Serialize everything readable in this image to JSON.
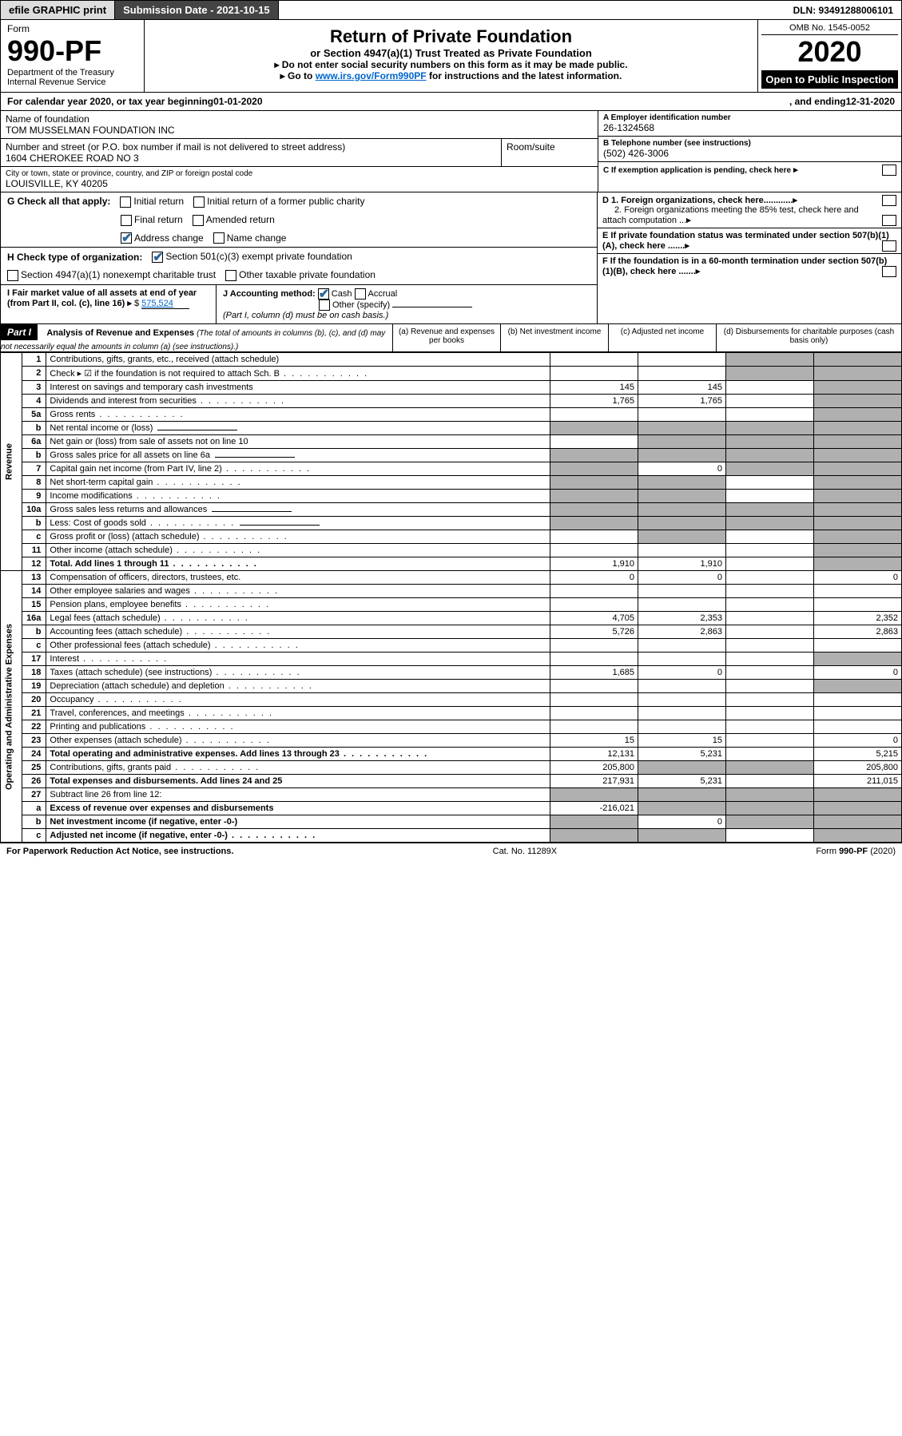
{
  "topbar": {
    "efile": "efile GRAPHIC print",
    "submission": "Submission Date - 2021-10-15",
    "dln": "DLN: 93491288006101"
  },
  "header": {
    "form_label": "Form",
    "form_number": "990-PF",
    "dept": "Department of the Treasury",
    "irs": "Internal Revenue Service",
    "title": "Return of Private Foundation",
    "subtitle": "or Section 4947(a)(1) Trust Treated as Private Foundation",
    "instr1": "▸ Do not enter social security numbers on this form as it may be made public.",
    "instr2_pre": "▸ Go to ",
    "instr2_link": "www.irs.gov/Form990PF",
    "instr2_post": " for instructions and the latest information.",
    "omb": "OMB No. 1545-0052",
    "year": "2020",
    "open": "Open to Public Inspection"
  },
  "calendar": {
    "text_pre": "For calendar year 2020, or tax year beginning ",
    "begin": "01-01-2020",
    "text_mid": " , and ending ",
    "end": "12-31-2020"
  },
  "entity": {
    "name_label": "Name of foundation",
    "name": "TOM MUSSELMAN FOUNDATION INC",
    "addr_label": "Number and street (or P.O. box number if mail is not delivered to street address)",
    "addr": "1604 CHEROKEE ROAD NO 3",
    "room_label": "Room/suite",
    "city_label": "City or town, state or province, country, and ZIP or foreign postal code",
    "city": "LOUISVILLE, KY  40205",
    "ein_label": "A Employer identification number",
    "ein": "26-1324568",
    "phone_label": "B Telephone number (see instructions)",
    "phone": "(502) 426-3006",
    "c_label": "C If exemption application is pending, check here",
    "d1": "D 1. Foreign organizations, check here............",
    "d2": "2. Foreign organizations meeting the 85% test, check here and attach computation ...",
    "e_label": "E If private foundation status was terminated under section 507(b)(1)(A), check here .......",
    "f_label": "F If the foundation is in a 60-month termination under section 507(b)(1)(B), check here .......",
    "g_label": "G Check all that apply:",
    "g_opts": [
      "Initial return",
      "Initial return of a former public charity",
      "Final return",
      "Amended return",
      "Address change",
      "Name change"
    ],
    "h_label": "H Check type of organization:",
    "h_opts": [
      "Section 501(c)(3) exempt private foundation",
      "Section 4947(a)(1) nonexempt charitable trust",
      "Other taxable private foundation"
    ],
    "i_label": "I Fair market value of all assets at end of year (from Part II, col. (c), line 16)",
    "i_val": "575,524",
    "j_label": "J Accounting method:",
    "j_opts": [
      "Cash",
      "Accrual",
      "Other (specify)"
    ],
    "j_note": "(Part I, column (d) must be on cash basis.)"
  },
  "part1": {
    "label": "Part I",
    "title": "Analysis of Revenue and Expenses",
    "title_note": "(The total of amounts in columns (b), (c), and (d) may not necessarily equal the amounts in column (a) (see instructions).)",
    "cols": {
      "a": "(a) Revenue and expenses per books",
      "b": "(b) Net investment income",
      "c": "(c) Adjusted net income",
      "d": "(d) Disbursements for charitable purposes (cash basis only)"
    },
    "sections": {
      "rev": "Revenue",
      "exp": "Operating and Administrative Expenses"
    },
    "rows": [
      {
        "n": "1",
        "d": "Contributions, gifts, grants, etc., received (attach schedule)",
        "a": "",
        "b": "",
        "c": "",
        "dd": "",
        "grey_c": true,
        "grey_d": true
      },
      {
        "n": "2",
        "d": "Check ▸ ☑ if the foundation is not required to attach Sch. B",
        "a": "",
        "b": "",
        "c": "",
        "dd": "",
        "dots": true,
        "grey_c": true,
        "grey_d": true
      },
      {
        "n": "3",
        "d": "Interest on savings and temporary cash investments",
        "a": "145",
        "b": "145",
        "c": "",
        "dd": "",
        "grey_d": true
      },
      {
        "n": "4",
        "d": "Dividends and interest from securities",
        "a": "1,765",
        "b": "1,765",
        "c": "",
        "dd": "",
        "dots": true,
        "grey_d": true
      },
      {
        "n": "5a",
        "d": "Gross rents",
        "a": "",
        "b": "",
        "c": "",
        "dd": "",
        "dots": true,
        "grey_d": true
      },
      {
        "n": "b",
        "d": "Net rental income or (loss)",
        "a": "",
        "b": "",
        "c": "",
        "dd": "",
        "grey_a": true,
        "grey_b": true,
        "grey_c": true,
        "grey_d": true,
        "uline": true
      },
      {
        "n": "6a",
        "d": "Net gain or (loss) from sale of assets not on line 10",
        "a": "",
        "b": "",
        "c": "",
        "dd": "",
        "grey_b": true,
        "grey_c": true,
        "grey_d": true
      },
      {
        "n": "b",
        "d": "Gross sales price for all assets on line 6a",
        "a": "",
        "b": "",
        "c": "",
        "dd": "",
        "grey_a": true,
        "grey_b": true,
        "grey_c": true,
        "grey_d": true,
        "uline": true
      },
      {
        "n": "7",
        "d": "Capital gain net income (from Part IV, line 2)",
        "a": "",
        "b": "0",
        "c": "",
        "dd": "",
        "dots": true,
        "grey_a": true,
        "grey_c": true,
        "grey_d": true
      },
      {
        "n": "8",
        "d": "Net short-term capital gain",
        "a": "",
        "b": "",
        "c": "",
        "dd": "",
        "dots": true,
        "grey_a": true,
        "grey_b": true,
        "grey_d": true
      },
      {
        "n": "9",
        "d": "Income modifications",
        "a": "",
        "b": "",
        "c": "",
        "dd": "",
        "dots": true,
        "grey_a": true,
        "grey_b": true,
        "grey_d": true
      },
      {
        "n": "10a",
        "d": "Gross sales less returns and allowances",
        "a": "",
        "b": "",
        "c": "",
        "dd": "",
        "grey_a": true,
        "grey_b": true,
        "grey_c": true,
        "grey_d": true,
        "uline": true
      },
      {
        "n": "b",
        "d": "Less: Cost of goods sold",
        "a": "",
        "b": "",
        "c": "",
        "dd": "",
        "dots": true,
        "grey_a": true,
        "grey_b": true,
        "grey_c": true,
        "grey_d": true,
        "uline": true
      },
      {
        "n": "c",
        "d": "Gross profit or (loss) (attach schedule)",
        "a": "",
        "b": "",
        "c": "",
        "dd": "",
        "dots": true,
        "grey_b": true,
        "grey_d": true
      },
      {
        "n": "11",
        "d": "Other income (attach schedule)",
        "a": "",
        "b": "",
        "c": "",
        "dd": "",
        "dots": true,
        "grey_d": true
      },
      {
        "n": "12",
        "d": "Total. Add lines 1 through 11",
        "a": "1,910",
        "b": "1,910",
        "c": "",
        "dd": "",
        "dots": true,
        "bold": true,
        "grey_d": true
      },
      {
        "n": "13",
        "d": "Compensation of officers, directors, trustees, etc.",
        "a": "0",
        "b": "0",
        "c": "",
        "dd": "0"
      },
      {
        "n": "14",
        "d": "Other employee salaries and wages",
        "a": "",
        "b": "",
        "c": "",
        "dd": "",
        "dots": true
      },
      {
        "n": "15",
        "d": "Pension plans, employee benefits",
        "a": "",
        "b": "",
        "c": "",
        "dd": "",
        "dots": true
      },
      {
        "n": "16a",
        "d": "Legal fees (attach schedule)",
        "a": "4,705",
        "b": "2,353",
        "c": "",
        "dd": "2,352",
        "dots": true
      },
      {
        "n": "b",
        "d": "Accounting fees (attach schedule)",
        "a": "5,726",
        "b": "2,863",
        "c": "",
        "dd": "2,863",
        "dots": true
      },
      {
        "n": "c",
        "d": "Other professional fees (attach schedule)",
        "a": "",
        "b": "",
        "c": "",
        "dd": "",
        "dots": true
      },
      {
        "n": "17",
        "d": "Interest",
        "a": "",
        "b": "",
        "c": "",
        "dd": "",
        "dots": true,
        "grey_d": true
      },
      {
        "n": "18",
        "d": "Taxes (attach schedule) (see instructions)",
        "a": "1,685",
        "b": "0",
        "c": "",
        "dd": "0",
        "dots": true
      },
      {
        "n": "19",
        "d": "Depreciation (attach schedule) and depletion",
        "a": "",
        "b": "",
        "c": "",
        "dd": "",
        "dots": true,
        "grey_d": true
      },
      {
        "n": "20",
        "d": "Occupancy",
        "a": "",
        "b": "",
        "c": "",
        "dd": "",
        "dots": true
      },
      {
        "n": "21",
        "d": "Travel, conferences, and meetings",
        "a": "",
        "b": "",
        "c": "",
        "dd": "",
        "dots": true
      },
      {
        "n": "22",
        "d": "Printing and publications",
        "a": "",
        "b": "",
        "c": "",
        "dd": "",
        "dots": true
      },
      {
        "n": "23",
        "d": "Other expenses (attach schedule)",
        "a": "15",
        "b": "15",
        "c": "",
        "dd": "0",
        "dots": true
      },
      {
        "n": "24",
        "d": "Total operating and administrative expenses. Add lines 13 through 23",
        "a": "12,131",
        "b": "5,231",
        "c": "",
        "dd": "5,215",
        "dots": true,
        "bold": true
      },
      {
        "n": "25",
        "d": "Contributions, gifts, grants paid",
        "a": "205,800",
        "b": "",
        "c": "",
        "dd": "205,800",
        "dots": true,
        "grey_b": true,
        "grey_c": true
      },
      {
        "n": "26",
        "d": "Total expenses and disbursements. Add lines 24 and 25",
        "a": "217,931",
        "b": "5,231",
        "c": "",
        "dd": "211,015",
        "bold": true
      },
      {
        "n": "27",
        "d": "Subtract line 26 from line 12:",
        "a": "",
        "b": "",
        "c": "",
        "dd": "",
        "grey_a": true,
        "grey_b": true,
        "grey_c": true,
        "grey_d": true
      },
      {
        "n": "a",
        "d": "Excess of revenue over expenses and disbursements",
        "a": "-216,021",
        "b": "",
        "c": "",
        "dd": "",
        "bold": true,
        "grey_b": true,
        "grey_c": true,
        "grey_d": true
      },
      {
        "n": "b",
        "d": "Net investment income (if negative, enter -0-)",
        "a": "",
        "b": "0",
        "c": "",
        "dd": "",
        "bold": true,
        "grey_a": true,
        "grey_c": true,
        "grey_d": true
      },
      {
        "n": "c",
        "d": "Adjusted net income (if negative, enter -0-)",
        "a": "",
        "b": "",
        "c": "",
        "dd": "",
        "bold": true,
        "dots": true,
        "grey_a": true,
        "grey_b": true,
        "grey_d": true
      }
    ]
  },
  "footer": {
    "left": "For Paperwork Reduction Act Notice, see instructions.",
    "mid": "Cat. No. 11289X",
    "right": "Form 990-PF (2020)"
  },
  "colors": {
    "link": "#0066cc",
    "grey": "#b0b0b0",
    "black": "#000000"
  }
}
